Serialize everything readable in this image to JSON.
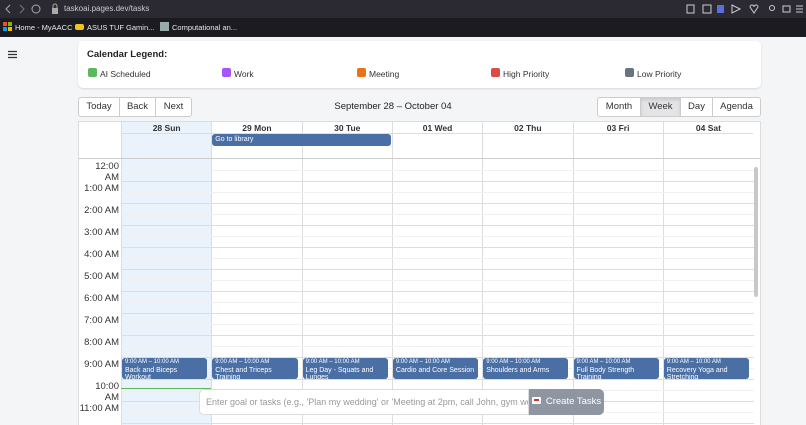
{
  "browser": {
    "url": "taskoai.pages.dev/tasks",
    "bookmarks": [
      "Home - MyAACC",
      "ASUS TUF Gamin...",
      "Computational an..."
    ]
  },
  "legend": {
    "title": "Calendar Legend:",
    "items": [
      {
        "label": "AI Scheduled",
        "color": "#5cb85c"
      },
      {
        "label": "Work",
        "color": "#a855f7"
      },
      {
        "label": "Meeting",
        "color": "#e8731a"
      },
      {
        "label": "High Priority",
        "color": "#dc4a4a"
      },
      {
        "label": "Low Priority",
        "color": "#6b7280"
      }
    ]
  },
  "toolbar": {
    "nav": [
      "Today",
      "Back",
      "Next"
    ],
    "range": "September 28 – October 04",
    "views": [
      "Month",
      "Week",
      "Day",
      "Agenda"
    ],
    "active_view": "Week"
  },
  "calendar": {
    "days": [
      "28 Sun",
      "29 Mon",
      "30 Tue",
      "01 Wed",
      "02 Thu",
      "03 Fri",
      "04 Sat"
    ],
    "all_day_events": [
      "Go to library"
    ],
    "time_slots": [
      "12:00 AM",
      "1:00 AM",
      "2:00 AM",
      "3:00 AM",
      "4:00 AM",
      "5:00 AM",
      "6:00 AM",
      "7:00 AM",
      "8:00 AM",
      "9:00 AM",
      "10:00 AM",
      "11:00 AM"
    ],
    "events": [
      {
        "time": "9:00 AM – 10:00 AM",
        "title": "Back and Biceps Workout"
      },
      {
        "time": "9:00 AM – 10:00 AM",
        "title": "Chest and Triceps Training"
      },
      {
        "time": "9:00 AM – 10:00 AM",
        "title": "Leg Day - Squats and Lunges"
      },
      {
        "time": "9:00 AM – 10:00 AM",
        "title": "Cardio and Core Session"
      },
      {
        "time": "9:00 AM – 10:00 AM",
        "title": "Shoulders and Arms"
      },
      {
        "time": "9:00 AM – 10:00 AM",
        "title": "Full Body Strength Training"
      },
      {
        "time": "9:00 AM – 10:00 AM",
        "title": "Recovery Yoga and Stretching"
      }
    ]
  },
  "input": {
    "placeholder": "Enter goal or tasks (e.g., 'Plan my wedding' or 'Meeting at 2pm, call John, gym wo",
    "button": "Create Tasks"
  }
}
